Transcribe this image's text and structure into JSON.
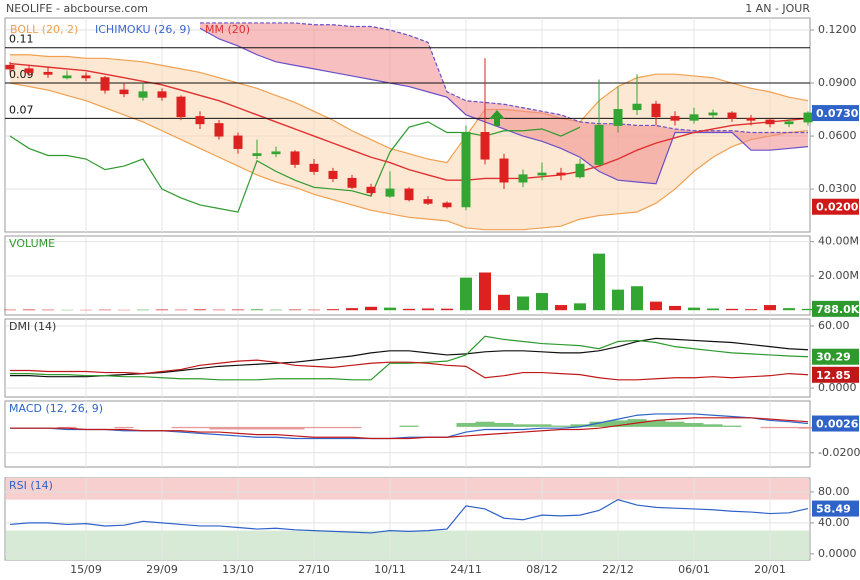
{
  "header": {
    "title": "NEOLIFE - abcbourse.com",
    "period": "1 AN - JOUR"
  },
  "chart_data": [
    {
      "type": "candlestick",
      "categories": [
        null,
        null,
        null,
        null,
        "15/09",
        null,
        null,
        null,
        "29/09",
        null,
        null,
        null,
        "13/10",
        null,
        null,
        null,
        "27/10",
        null,
        null,
        null,
        "10/11",
        null,
        null,
        null,
        "24/11",
        null,
        null,
        null,
        "08/12",
        null,
        null,
        null,
        "22/12",
        null,
        null,
        null,
        "06/01",
        null,
        null,
        null,
        "20/01",
        null,
        null
      ],
      "open": [
        0.1,
        0.098,
        0.096,
        0.093,
        0.094,
        0.093,
        0.086,
        0.082,
        0.085,
        0.082,
        0.071,
        0.067,
        0.06,
        0.049,
        0.05,
        0.051,
        0.044,
        0.04,
        0.036,
        0.031,
        0.026,
        0.03,
        0.024,
        0.022,
        0.02,
        0.062,
        0.047,
        0.034,
        0.038,
        0.039,
        0.037,
        0.044,
        0.066,
        0.075,
        0.078,
        0.071,
        0.069,
        0.072,
        0.073,
        0.07,
        0.069,
        0.067,
        0.068
      ],
      "high": [
        0.102,
        0.1,
        0.099,
        0.097,
        0.096,
        0.094,
        0.09,
        0.09,
        0.087,
        0.083,
        0.074,
        0.069,
        0.062,
        0.058,
        0.054,
        0.052,
        0.047,
        0.042,
        0.038,
        0.033,
        0.04,
        0.031,
        0.026,
        0.023,
        0.066,
        0.104,
        0.05,
        0.041,
        0.045,
        0.042,
        0.047,
        0.092,
        0.088,
        0.095,
        0.08,
        0.074,
        0.076,
        0.075,
        0.074,
        0.072,
        0.07,
        0.07,
        0.074
      ],
      "low": [
        0.096,
        0.094,
        0.093,
        0.092,
        0.091,
        0.084,
        0.082,
        0.08,
        0.08,
        0.069,
        0.064,
        0.058,
        0.05,
        0.047,
        0.048,
        0.042,
        0.038,
        0.034,
        0.03,
        0.026,
        0.025,
        0.023,
        0.021,
        0.019,
        0.018,
        0.044,
        0.03,
        0.031,
        0.035,
        0.035,
        0.036,
        0.043,
        0.062,
        0.072,
        0.066,
        0.066,
        0.067,
        0.07,
        0.068,
        0.066,
        0.065,
        0.065,
        0.066
      ],
      "close": [
        0.098,
        0.096,
        0.095,
        0.094,
        0.093,
        0.086,
        0.084,
        0.085,
        0.082,
        0.071,
        0.067,
        0.06,
        0.053,
        0.05,
        0.051,
        0.044,
        0.04,
        0.036,
        0.031,
        0.028,
        0.03,
        0.024,
        0.022,
        0.02,
        0.062,
        0.047,
        0.034,
        0.038,
        0.039,
        0.038,
        0.044,
        0.066,
        0.075,
        0.078,
        0.071,
        0.069,
        0.072,
        0.073,
        0.07,
        0.069,
        0.067,
        0.068,
        0.073
      ],
      "value_labels": [
        null,
        null,
        null,
        null,
        null,
        null,
        null,
        null,
        null,
        null,
        null,
        null,
        null,
        null,
        null,
        null,
        null,
        null,
        null,
        null,
        null,
        null,
        null,
        null,
        null,
        null,
        null,
        null,
        null,
        null,
        null,
        null,
        null,
        null,
        null,
        null,
        null,
        null,
        null,
        null,
        null,
        null,
        "0.0730"
      ],
      "up_color": "#33a533",
      "down_color": "#dd2020",
      "box_color": "#2f63c8",
      "indicators": [
        {
          "name": "BOLL (20, 2)",
          "kind": "band",
          "color": "#f0a050",
          "fill": "#fbd9b5",
          "upper": [
            0.106,
            0.106,
            0.105,
            0.105,
            0.104,
            0.104,
            0.103,
            0.102,
            0.1,
            0.098,
            0.096,
            0.093,
            0.09,
            0.087,
            0.083,
            0.079,
            0.074,
            0.069,
            0.063,
            0.058,
            0.053,
            0.05,
            0.047,
            0.045,
            0.06,
            0.075,
            0.075,
            0.074,
            0.073,
            0.07,
            0.068,
            0.08,
            0.088,
            0.093,
            0.095,
            0.095,
            0.094,
            0.093,
            0.09,
            0.087,
            0.085,
            0.082,
            0.08
          ],
          "lower": [
            0.09,
            0.088,
            0.086,
            0.083,
            0.08,
            0.076,
            0.072,
            0.068,
            0.063,
            0.058,
            0.053,
            0.048,
            0.043,
            0.038,
            0.034,
            0.031,
            0.027,
            0.024,
            0.021,
            0.018,
            0.016,
            0.014,
            0.013,
            0.012,
            0.008,
            0.007,
            0.007,
            0.007,
            0.008,
            0.009,
            0.013,
            0.015,
            0.016,
            0.017,
            0.022,
            0.03,
            0.04,
            0.048,
            0.054,
            0.058,
            0.06,
            0.062,
            0.063
          ]
        },
        {
          "name": "ICHIMOKU (26, 9)",
          "kind": "cloud",
          "color": "#3a66d0",
          "fill": "#f08a8a",
          "edge_color": "#6a50c8",
          "lagging_color": "#2e9a2e",
          "span_a": [
            null,
            null,
            null,
            null,
            null,
            null,
            null,
            null,
            null,
            null,
            0.121,
            0.115,
            0.111,
            0.106,
            0.102,
            0.1,
            0.098,
            0.096,
            0.094,
            0.092,
            0.09,
            0.088,
            0.085,
            0.082,
            0.072,
            0.068,
            0.064,
            0.06,
            0.057,
            0.053,
            0.048,
            0.04,
            0.035,
            0.034,
            0.033,
            0.062,
            0.062,
            0.062,
            0.062,
            0.052,
            0.052,
            0.053,
            0.054
          ],
          "span_b": [
            null,
            null,
            null,
            null,
            null,
            null,
            null,
            null,
            null,
            null,
            0.124,
            0.124,
            0.124,
            0.124,
            0.124,
            0.124,
            0.123,
            0.123,
            0.122,
            0.122,
            0.12,
            0.117,
            0.113,
            0.085,
            0.08,
            0.079,
            0.078,
            0.076,
            0.074,
            0.072,
            0.068,
            0.067,
            0.067,
            0.066,
            0.066,
            0.064,
            0.063,
            0.063,
            0.063,
            0.062,
            0.062,
            0.062,
            0.062
          ],
          "lagging": [
            0.06,
            0.053,
            0.049,
            0.049,
            0.047,
            0.041,
            0.043,
            0.047,
            0.03,
            0.025,
            0.021,
            0.019,
            0.017,
            0.046,
            0.04,
            0.035,
            0.031,
            0.03,
            0.029,
            0.026,
            0.051,
            0.065,
            0.068,
            0.062,
            0.062,
            0.06,
            0.063,
            0.063,
            0.064,
            0.06,
            0.065,
            null,
            null,
            null,
            null,
            null,
            null,
            null,
            null,
            null,
            null,
            null,
            null
          ]
        },
        {
          "name": "MM (20)",
          "kind": "line",
          "color": "#e03030",
          "values": [
            0.101,
            0.1,
            0.099,
            0.098,
            0.097,
            0.095,
            0.093,
            0.091,
            0.089,
            0.086,
            0.083,
            0.08,
            0.076,
            0.072,
            0.068,
            0.064,
            0.06,
            0.056,
            0.052,
            0.048,
            0.045,
            0.041,
            0.038,
            0.035,
            0.035,
            0.036,
            0.036,
            0.036,
            0.037,
            0.038,
            0.04,
            0.043,
            0.047,
            0.052,
            0.056,
            0.059,
            0.062,
            0.064,
            0.066,
            0.067,
            0.068,
            0.069,
            0.07
          ]
        }
      ],
      "levels": [
        0.11,
        0.09,
        0.07
      ],
      "markers": [
        {
          "value": 0.02,
          "label": "0.0200",
          "color": "#d01818"
        }
      ],
      "ylim": [
        0.0057,
        0.1268
      ],
      "yticks": [
        {
          "value": 0.12,
          "label": "0.1200"
        },
        {
          "value": 0.09,
          "label": "0.0900"
        },
        {
          "value": 0.06,
          "label": "0.0600"
        },
        {
          "value": 0.03,
          "label": "0.0300"
        }
      ]
    },
    {
      "type": "bar",
      "title": "VOLUME",
      "title_color": "#2e9a2e",
      "box_color": "#2e9a2e",
      "values": [
        300000,
        400000,
        300000,
        200000,
        200000,
        300000,
        200000,
        300000,
        400000,
        300000,
        500000,
        300000,
        400000,
        500000,
        300000,
        400000,
        300000,
        600000,
        1200000,
        2000000,
        1500000,
        800000,
        1000000,
        900000,
        19000000,
        22000000,
        9000000,
        8000000,
        10000000,
        3000000,
        4000000,
        33000000,
        12000000,
        14000000,
        5000000,
        2500000,
        1500000,
        1000000,
        800000,
        600000,
        3000000,
        1200000,
        788000
      ],
      "value_labels": [
        null,
        null,
        null,
        null,
        null,
        null,
        null,
        null,
        null,
        null,
        null,
        null,
        null,
        null,
        null,
        null,
        null,
        null,
        null,
        null,
        null,
        null,
        null,
        null,
        null,
        null,
        null,
        null,
        null,
        null,
        null,
        null,
        null,
        null,
        null,
        null,
        null,
        null,
        null,
        null,
        null,
        null,
        "788.0K"
      ],
      "ylim": [
        -2800000,
        43300000
      ],
      "yticks": [
        {
          "value": 40000000,
          "label": "40.00M"
        },
        {
          "value": 20000000,
          "label": "20.00M"
        }
      ]
    },
    {
      "type": "line",
      "title": "DMI (14)",
      "title_color": "#333333",
      "series": [
        {
          "color": "#111111",
          "values": [
            12,
            12,
            11,
            11,
            11,
            12,
            13,
            14,
            15,
            17,
            19,
            21,
            22,
            23,
            24,
            25,
            27,
            29,
            31,
            34,
            36,
            36,
            34,
            32,
            33,
            35,
            36,
            36,
            35,
            34,
            34,
            36,
            40,
            45,
            48,
            47,
            46,
            45,
            44,
            42,
            40,
            38,
            37
          ]
        },
        {
          "color": "#2e9a2e",
          "box": true,
          "values": [
            14,
            14,
            13,
            13,
            12,
            12,
            11,
            11,
            10,
            9,
            9,
            8,
            8,
            8,
            9,
            9,
            9,
            9,
            8,
            8,
            24,
            24,
            25,
            26,
            32,
            50,
            47,
            45,
            43,
            42,
            41,
            38,
            45,
            46,
            44,
            40,
            38,
            36,
            34,
            33,
            32,
            31,
            30.29
          ]
        },
        {
          "color": "#c01818",
          "box": true,
          "values": [
            17,
            17,
            16,
            16,
            16,
            15,
            15,
            14,
            16,
            18,
            22,
            24,
            26,
            27,
            25,
            22,
            21,
            20,
            22,
            24,
            25,
            25,
            24,
            22,
            21,
            10,
            12,
            15,
            15,
            14,
            13,
            10,
            8,
            8,
            9,
            10,
            10,
            11,
            10,
            11,
            12,
            14,
            12.85
          ]
        }
      ],
      "ylim": [
        -8.6,
        66.7
      ],
      "yticks": [
        {
          "value": 60,
          "label": "60.00"
        },
        {
          "value": 0,
          "label": "0.0000"
        }
      ]
    },
    {
      "type": "line",
      "title": "MACD (12, 26, 9)",
      "title_color": "#2f63c8",
      "series": [
        {
          "color": "#2f63c8",
          "box": true,
          "values": [
            -0.001,
            -0.001,
            -0.001,
            -0.002,
            -0.002,
            -0.002,
            -0.003,
            -0.003,
            -0.003,
            -0.004,
            -0.005,
            -0.006,
            -0.007,
            -0.008,
            -0.008,
            -0.009,
            -0.009,
            -0.009,
            -0.009,
            -0.009,
            -0.009,
            -0.008,
            -0.008,
            -0.008,
            -0.004,
            -0.002,
            -0.002,
            -0.002,
            -0.001,
            -0.001,
            0,
            0.003,
            0.006,
            0.009,
            0.01,
            0.01,
            0.01,
            0.009,
            0.008,
            0.007,
            0.005,
            0.004,
            0.0026
          ]
        },
        {
          "color": "#c01818",
          "values": [
            -0.001,
            -0.001,
            -0.001,
            -0.001,
            -0.002,
            -0.002,
            -0.002,
            -0.003,
            -0.003,
            -0.003,
            -0.004,
            -0.004,
            -0.005,
            -0.006,
            -0.006,
            -0.007,
            -0.008,
            -0.008,
            -0.008,
            -0.009,
            -0.009,
            -0.009,
            -0.008,
            -0.008,
            -0.007,
            -0.006,
            -0.005,
            -0.004,
            -0.003,
            -0.002,
            -0.002,
            -0.001,
            0.001,
            0.003,
            0.005,
            0.006,
            0.007,
            0.007,
            0.007,
            0.007,
            0.006,
            0.005,
            0.004
          ]
        }
      ],
      "histogram": {
        "up_color": "#7cc47c",
        "down_color": "#e89a9a",
        "values": [
          0,
          0,
          0,
          -0.001,
          0,
          0,
          -0.001,
          0,
          0,
          -0.001,
          -0.001,
          -0.002,
          -0.002,
          -0.002,
          -0.002,
          -0.002,
          -0.001,
          -0.001,
          -0.001,
          0,
          0,
          0.001,
          0,
          0,
          0.003,
          0.004,
          0.003,
          0.002,
          0.002,
          0.001,
          0.002,
          0.004,
          0.005,
          0.006,
          0.005,
          0.004,
          0.003,
          0.002,
          0.001,
          0,
          -0.001,
          -0.001,
          -0.0014
        ]
      },
      "ylim": [
        -0.031,
        0.02
      ],
      "yticks": [
        {
          "value": -0.02,
          "label": "-0.0200"
        }
      ]
    },
    {
      "type": "line",
      "title": "RSI (14)",
      "title_color": "#2f63c8",
      "zones": [
        {
          "from": 70,
          "to": 98,
          "color": "#f7cfcf"
        },
        {
          "from": -8,
          "to": 30,
          "color": "#d6ead6"
        }
      ],
      "series": [
        {
          "color": "#2f63c8",
          "box": true,
          "values": [
            38,
            40,
            40,
            38,
            39,
            36,
            37,
            42,
            40,
            38,
            36,
            36,
            34,
            32,
            33,
            31,
            30,
            29,
            28,
            27,
            30,
            29,
            30,
            32,
            62,
            58,
            46,
            44,
            50,
            49,
            50,
            56,
            70,
            63,
            60,
            59,
            58,
            57,
            55,
            54,
            52,
            53,
            58.49
          ]
        }
      ],
      "ylim": [
        -8,
        98
      ],
      "yticks": [
        {
          "value": 80,
          "label": "80.00"
        },
        {
          "value": 40,
          "label": "40.00"
        },
        {
          "value": 0,
          "label": "0.0000"
        }
      ]
    }
  ]
}
